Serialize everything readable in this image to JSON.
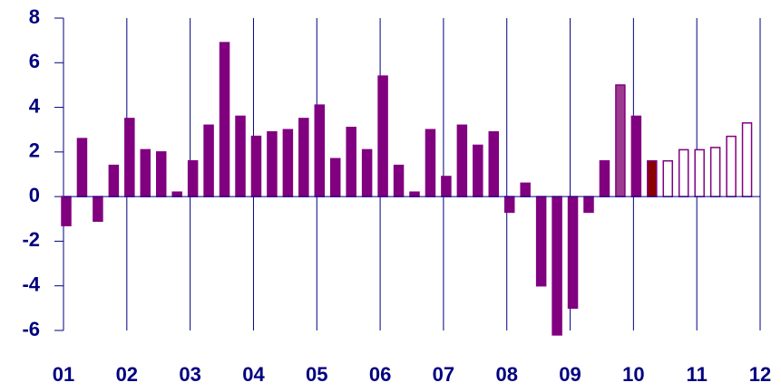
{
  "chart_data": {
    "type": "bar",
    "x": [
      2001,
      2001.25,
      2001.5,
      2001.75,
      2002,
      2002.25,
      2002.5,
      2002.75,
      2003,
      2003.25,
      2003.5,
      2003.75,
      2004,
      2004.25,
      2004.5,
      2004.75,
      2005,
      2005.25,
      2005.5,
      2005.75,
      2006,
      2006.25,
      2006.5,
      2006.75,
      2007,
      2007.25,
      2007.5,
      2007.75,
      2008,
      2008.25,
      2008.5,
      2008.75,
      2009,
      2009.25,
      2009.5,
      2009.75,
      2010,
      2010.25,
      2010.5,
      2010.75,
      2011,
      2011.25,
      2011.5,
      2011.75
    ],
    "values": [
      -1.3,
      2.6,
      -1.1,
      1.4,
      3.5,
      2.1,
      2.0,
      0.2,
      1.6,
      3.2,
      6.9,
      3.6,
      2.7,
      2.9,
      3.0,
      3.5,
      4.1,
      1.7,
      3.1,
      2.1,
      5.4,
      1.4,
      0.2,
      3.0,
      0.9,
      3.2,
      2.3,
      2.9,
      -0.7,
      0.6,
      -4.0,
      -6.2,
      -5.0,
      -0.7,
      1.6,
      5.0,
      3.6,
      1.6,
      1.6,
      2.1,
      2.1,
      2.2,
      2.7,
      3.3
    ],
    "colors": [
      "#800080",
      "#800080",
      "#800080",
      "#800080",
      "#800080",
      "#800080",
      "#800080",
      "#800080",
      "#800080",
      "#800080",
      "#800080",
      "#800080",
      "#800080",
      "#800080",
      "#800080",
      "#800080",
      "#800080",
      "#800080",
      "#800080",
      "#800080",
      "#800080",
      "#800080",
      "#800080",
      "#800080",
      "#800080",
      "#800080",
      "#800080",
      "#800080",
      "#800080",
      "#800080",
      "#800080",
      "#800080",
      "#800080",
      "#800080",
      "#800080",
      "#9b3a8f",
      "#800080",
      "#8b0000",
      "#ffffff",
      "#ffffff",
      "#ffffff",
      "#ffffff",
      "#ffffff",
      "#ffffff"
    ],
    "stroke": "#800080",
    "xlim": [
      2001,
      2012
    ],
    "xticks": [
      {
        "value": 2001,
        "label": "01"
      },
      {
        "value": 2002,
        "label": "02"
      },
      {
        "value": 2003,
        "label": "03"
      },
      {
        "value": 2004,
        "label": "04"
      },
      {
        "value": 2005,
        "label": "05"
      },
      {
        "value": 2006,
        "label": "06"
      },
      {
        "value": 2007,
        "label": "07"
      },
      {
        "value": 2008,
        "label": "08"
      },
      {
        "value": 2009,
        "label": "09"
      },
      {
        "value": 2010,
        "label": "10"
      },
      {
        "value": 2011,
        "label": "11"
      },
      {
        "value": 2012,
        "label": "12"
      }
    ],
    "ylim": [
      -6,
      8
    ],
    "yticks": [
      -6,
      -4,
      -2,
      0,
      2,
      4,
      6,
      8
    ],
    "grid": true,
    "axis_color": "#000080"
  }
}
